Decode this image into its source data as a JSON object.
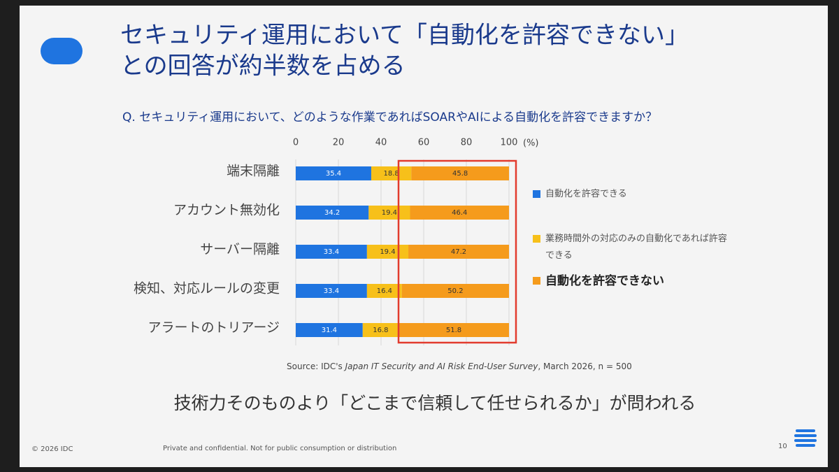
{
  "slide": {
    "title_lines": [
      "セキュリティ運用において「自動化を許容できない」",
      "との回答が約半数を占める"
    ],
    "question": "Q. セキュリティ運用において、どのような作業であればSOARやAIによる自動化を許容できますか？",
    "source": {
      "prefix": "Source: IDC's ",
      "survey": "Japan IT Security and AI Risk End-User Survey",
      "suffix": ", March 2026, n = 500"
    },
    "message": "技術力そのものより「どこまで信頼して任せられるか」が問われる",
    "footer": {
      "copyright": "© 2026 IDC",
      "notice": "Private and confidential. Not for public consumption or distribution",
      "page": "10"
    }
  },
  "chart_data": {
    "type": "stacked-barh",
    "categories": [
      "端末隔離",
      "アカウント無効化",
      "サーバー隔離",
      "検知、対応ルールの変更",
      "アラートのトリアージ"
    ],
    "series": [
      {
        "name": "自動化を許容できる",
        "color": "#1f74e0",
        "values": [
          35.4,
          34.2,
          33.4,
          33.4,
          31.4
        ]
      },
      {
        "name": "業務時間外の対応のみの自動化であれば許容できる",
        "color": "#f7c01a",
        "values": [
          18.8,
          19.4,
          19.4,
          16.4,
          16.8
        ]
      },
      {
        "name": "自動化を許容できない",
        "color": "#f59b1c",
        "values": [
          45.8,
          46.4,
          47.2,
          50.2,
          51.8
        ]
      }
    ],
    "xlim": [
      0,
      100
    ],
    "xticks": [
      0,
      20,
      40,
      60,
      80,
      100
    ],
    "xlabel": "(%)",
    "grid": true
  }
}
